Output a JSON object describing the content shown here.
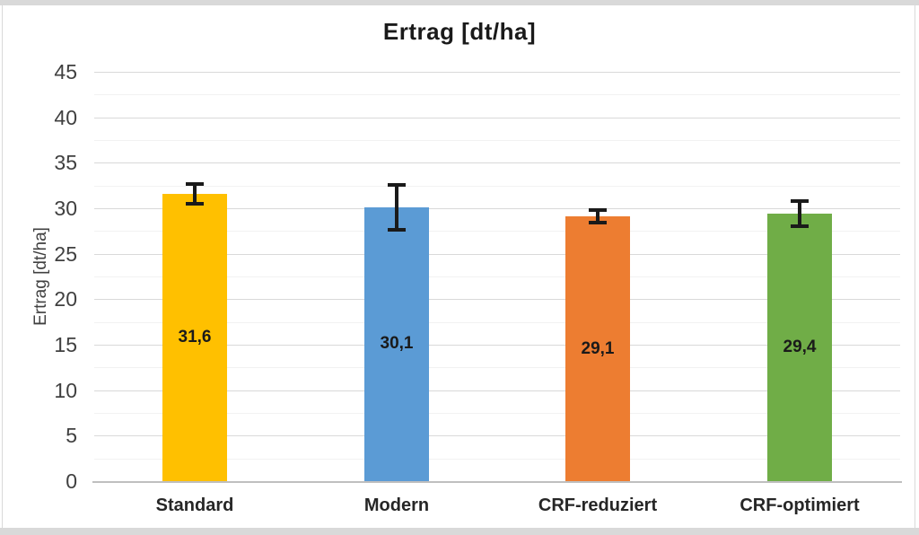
{
  "frame": {
    "strip_color": "#d9d9d9",
    "background": "#ffffff"
  },
  "chart_data": {
    "type": "bar",
    "title": "Ertrag [dt/ha]",
    "ylabel": "Ertrag [dt/ha]",
    "xlabel": "",
    "categories": [
      "Standard",
      "Modern",
      "CRF-reduziert",
      "CRF-optimiert"
    ],
    "values": [
      31.6,
      30.1,
      29.1,
      29.4
    ],
    "value_labels": [
      "31,6",
      "30,1",
      "29,1",
      "29,4"
    ],
    "error_bars": [
      1.1,
      2.5,
      0.7,
      1.4
    ],
    "bar_colors": [
      "#FFC000",
      "#5B9BD5",
      "#ED7D31",
      "#70AD47"
    ],
    "ylim": [
      0,
      45
    ],
    "ytick_step": 5,
    "yminor_step": 2.5,
    "grid": true,
    "legend": false,
    "label_position": "center",
    "colors": {
      "data_label": "#1a1a1a",
      "axis_text": "#404040",
      "major_grid": "#d9d9d9",
      "minor_grid": "#f2f2f2",
      "axis_line": "#bfbfbf",
      "error_bar": "#1a1a1a"
    }
  }
}
